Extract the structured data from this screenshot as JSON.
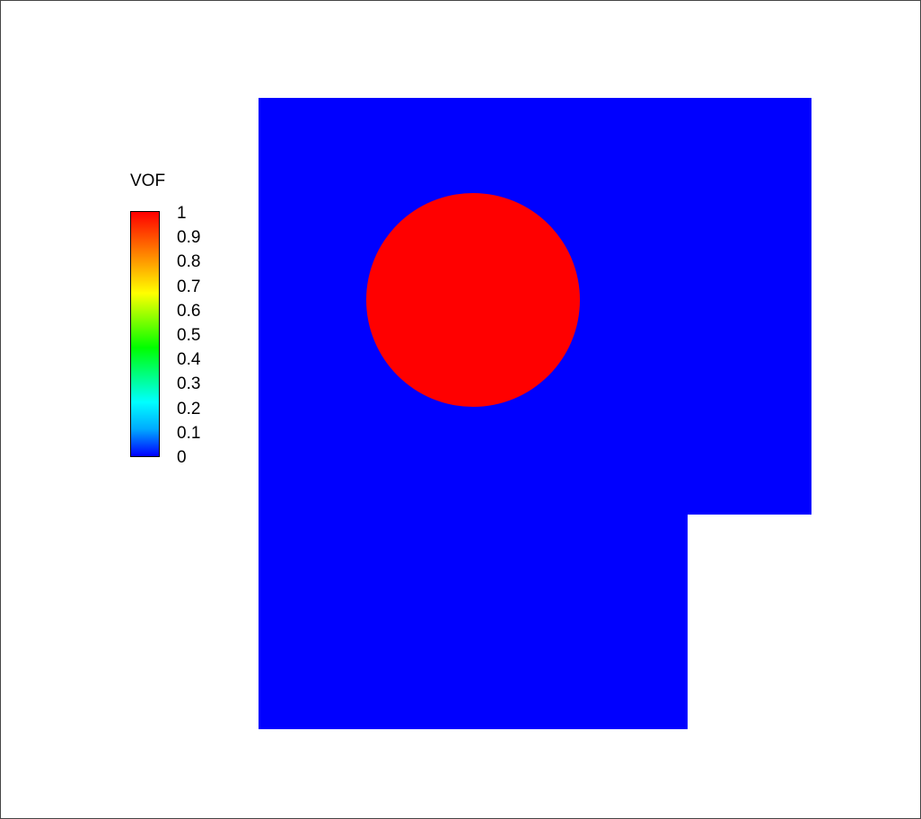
{
  "chart_data": {
    "type": "contour",
    "variable": "VOF",
    "colorbar": {
      "title": "VOF",
      "min": 0,
      "max": 1,
      "tick_labels": [
        "1",
        "0.9",
        "0.8",
        "0.7",
        "0.6",
        "0.5",
        "0.4",
        "0.3",
        "0.2",
        "0.1",
        "0"
      ],
      "tick_values": [
        1,
        0.9,
        0.8,
        0.7,
        0.6,
        0.5,
        0.4,
        0.3,
        0.2,
        0.1,
        0
      ],
      "colors": [
        "#0000ff",
        "#00aaff",
        "#00ffff",
        "#00ff80",
        "#00ff00",
        "#80ff00",
        "#ffff00",
        "#ffaa00",
        "#ff5500",
        "#ff0000"
      ]
    },
    "fields": {
      "domain": {
        "value": 0,
        "color": "#0000ff"
      },
      "droplet": {
        "value": 1,
        "color": "#ff0000"
      }
    }
  }
}
